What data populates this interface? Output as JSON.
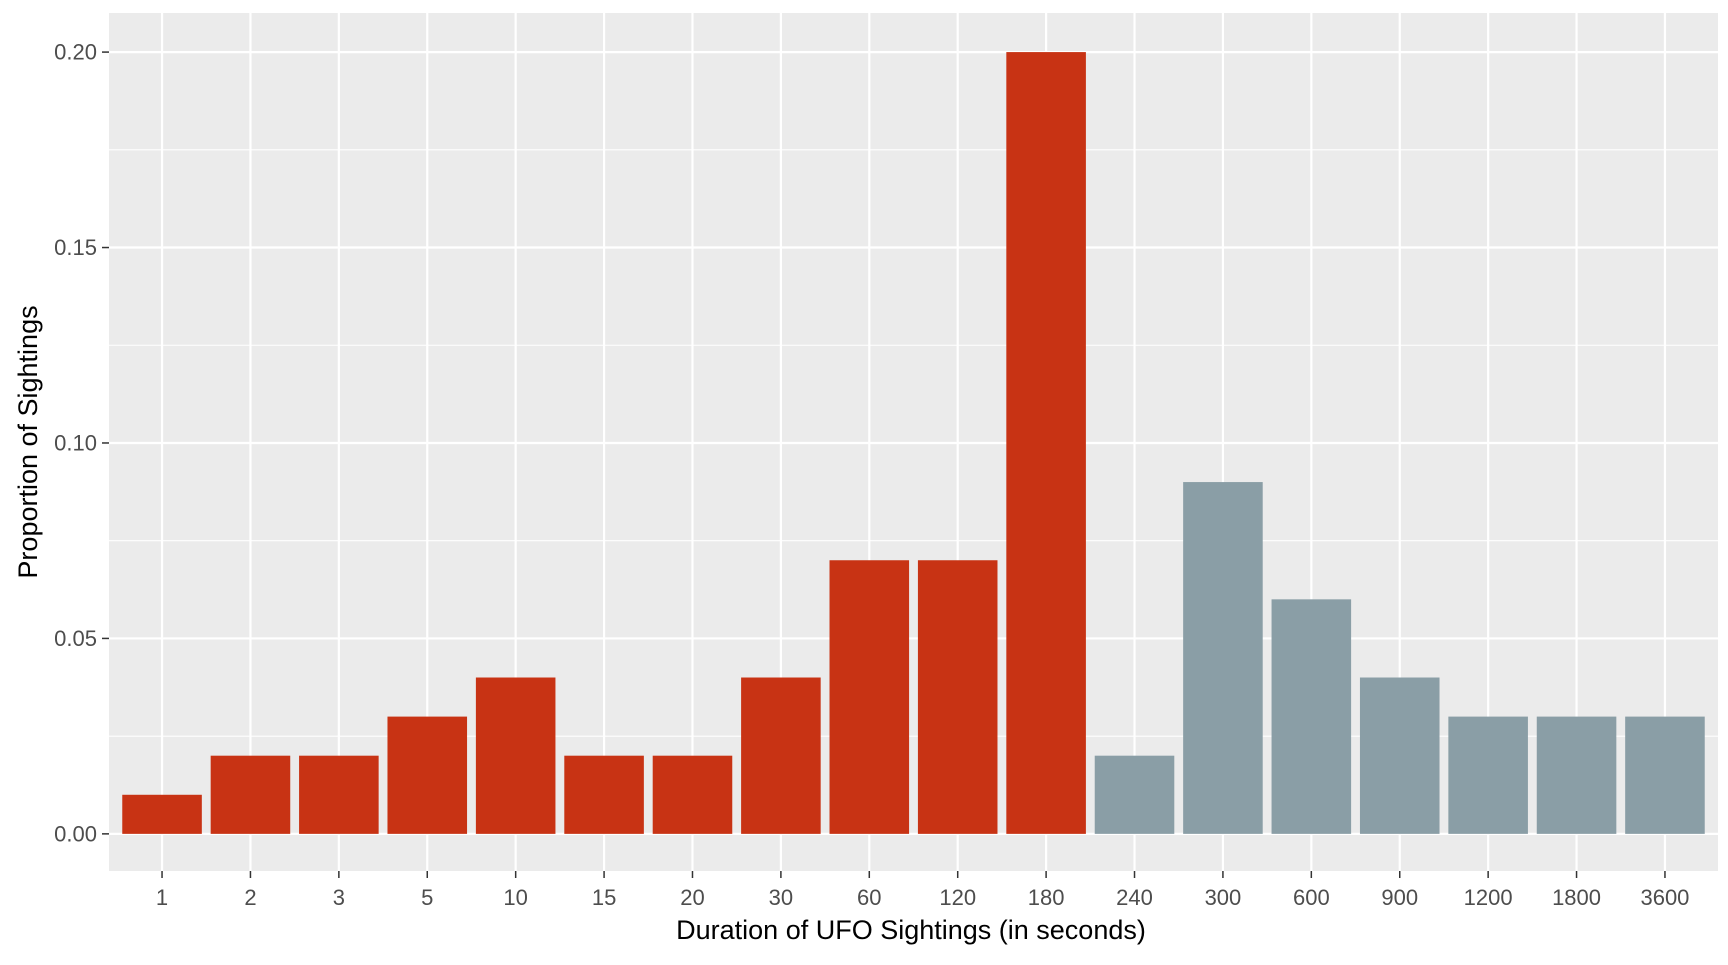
{
  "chart_data": {
    "type": "bar",
    "xlabel": "Duration of UFO Sightings (in seconds)",
    "ylabel": "Proportion of Sightings",
    "categories": [
      "1",
      "2",
      "3",
      "5",
      "10",
      "15",
      "20",
      "30",
      "60",
      "120",
      "180",
      "240",
      "300",
      "600",
      "900",
      "1200",
      "1800",
      "3600"
    ],
    "values": [
      0.01,
      0.02,
      0.02,
      0.03,
      0.04,
      0.02,
      0.02,
      0.04,
      0.07,
      0.07,
      0.2,
      0.02,
      0.09,
      0.06,
      0.04,
      0.03,
      0.03,
      0.03
    ],
    "highlight": [
      true,
      true,
      true,
      true,
      true,
      true,
      true,
      true,
      true,
      true,
      true,
      false,
      false,
      false,
      false,
      false,
      false,
      false
    ],
    "y_ticks": [
      0.0,
      0.05,
      0.1,
      0.15,
      0.2
    ],
    "y_tick_labels": [
      "0.00",
      "0.05",
      "0.10",
      "0.15",
      "0.20"
    ],
    "ylim": [
      -0.0095,
      0.21
    ],
    "grid": true,
    "legend": "none",
    "colors": {
      "highlight": "#c83314",
      "other": "#8a9ea6",
      "panel": "#ebebeb",
      "grid": "#ffffff"
    }
  }
}
